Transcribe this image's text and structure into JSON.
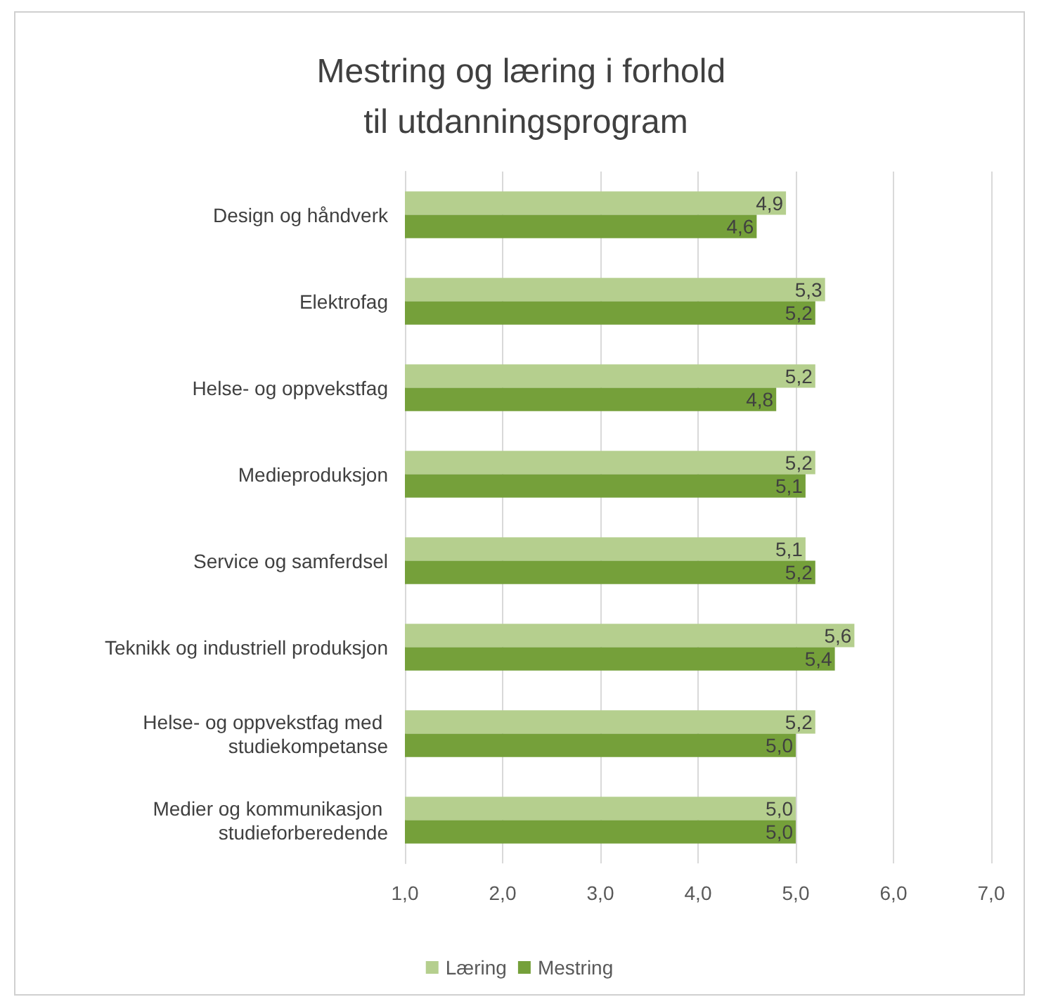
{
  "chart_data": {
    "type": "bar",
    "orientation": "horizontal",
    "title": "Mestring og læring i forhold til utdanningsprogram",
    "categories": [
      "Design og håndverk",
      "Elektrofag",
      "Helse- og oppvekstfag",
      "Medieproduksjon",
      "Service og samferdsel",
      "Teknikk og industriell produksjon",
      "Helse- og oppvekstfag med studiekompetanse",
      "Medier og kommunikasjon studieforberedende"
    ],
    "series": [
      {
        "name": "Læring",
        "color": "#b5cf8e",
        "values": [
          4.9,
          5.3,
          5.2,
          5.2,
          5.1,
          5.6,
          5.2,
          5.0
        ],
        "value_labels": [
          "4,9",
          "5,3",
          "5,2",
          "5,2",
          "5,1",
          "5,6",
          "5,2",
          "5,0"
        ]
      },
      {
        "name": "Mestring",
        "color": "#75a03a",
        "values": [
          4.6,
          5.2,
          4.8,
          5.1,
          5.2,
          5.4,
          5.0,
          5.0
        ],
        "value_labels": [
          "4,6",
          "5,2",
          "4,8",
          "5,1",
          "5,2",
          "5,4",
          "5,0",
          "5,0"
        ]
      }
    ],
    "xlim": [
      1,
      7
    ],
    "xticks": [
      {
        "value": 1,
        "label": "1,0"
      },
      {
        "value": 2,
        "label": "2,0"
      },
      {
        "value": 3,
        "label": "3,0"
      },
      {
        "value": 4,
        "label": "4,0"
      },
      {
        "value": 5,
        "label": "5,0"
      },
      {
        "value": 6,
        "label": "6,0"
      },
      {
        "value": 7,
        "label": "7,0"
      }
    ],
    "grid": "x",
    "legend": "bottom"
  }
}
